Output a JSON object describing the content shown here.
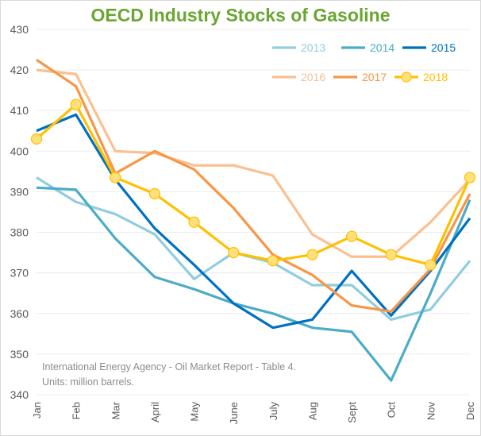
{
  "chart_data": {
    "type": "line",
    "title": "OECD Industry Stocks of Gasoline",
    "xlabel": "",
    "ylabel": "",
    "categories": [
      "Jan",
      "Feb",
      "Mar",
      "April",
      "May",
      "June",
      "July",
      "Aug",
      "Sept",
      "Oct",
      "Nov",
      "Dec"
    ],
    "ylim": [
      340,
      430
    ],
    "yticks": [
      340,
      350,
      360,
      370,
      380,
      390,
      400,
      410,
      420,
      430
    ],
    "grid": true,
    "legend_position": "top-right",
    "series": [
      {
        "name": "2013",
        "color": "#92CDDC",
        "markers": false,
        "values": [
          393.5,
          387.5,
          384.5,
          379.5,
          368.5,
          375,
          372.5,
          367,
          367,
          358.5,
          361,
          373
        ]
      },
      {
        "name": "2014",
        "color": "#4BACC6",
        "markers": false,
        "values": [
          391,
          390.5,
          378.5,
          369,
          366,
          362.5,
          360,
          356.5,
          355.5,
          343.5,
          365,
          388
        ]
      },
      {
        "name": "2015",
        "color": "#0070C0",
        "markers": false,
        "values": [
          405,
          409,
          393,
          381,
          372,
          362.5,
          356.5,
          358.5,
          370.5,
          359.5,
          370.5,
          383.5
        ]
      },
      {
        "name": "2016",
        "color": "#FAC090",
        "markers": false,
        "values": [
          420,
          419,
          400,
          399.5,
          396.5,
          396.5,
          394,
          379.5,
          374,
          374,
          382.5,
          393
        ]
      },
      {
        "name": "2017",
        "color": "#F79646",
        "markers": false,
        "values": [
          422.5,
          416,
          394.5,
          400,
          395.5,
          386,
          374.5,
          369.5,
          362,
          360.5,
          371,
          389.5
        ]
      },
      {
        "name": "2018",
        "color": "#FFC000",
        "markers": true,
        "marker_fill": "#FFE07A",
        "values": [
          403,
          411.5,
          393.5,
          389.5,
          382.5,
          375,
          373,
          374.5,
          379,
          374.5,
          372,
          393.5
        ]
      }
    ],
    "annotations": [
      "International Energy Agency - Oil Market Report - Table 4.",
      "Units: million barrels."
    ]
  }
}
